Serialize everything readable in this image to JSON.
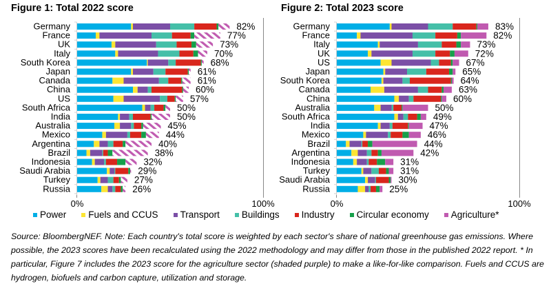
{
  "footnote": "Source: BloombergNEF. Note: Each country's total score is weighted by each sector's share of national greenhouse gas emissions. Where possible, the 2023 scores have been recalculated using the 2022 methodology and may differ from those in the published 2022 report. * In particular, Figure 7 includes the 2023 score for the agriculture sector (shaded purple) to make a like-for-like comparison. Fuels and CCUS are hydrogen, biofuels and carbon capture, utilization and storage.",
  "legend": [
    {
      "label": "Power",
      "color": "#00aee6"
    },
    {
      "label": "Fuels and CCUS",
      "color": "#fce533"
    },
    {
      "label": "Transport",
      "color": "#7b4fa6"
    },
    {
      "label": "Buildings",
      "color": "#45bfa8"
    },
    {
      "label": "Industry",
      "color": "#d9261c"
    },
    {
      "label": "Circular economy",
      "color": "#16a04a"
    },
    {
      "label": "Agriculture*",
      "color": "#c05ab0"
    }
  ],
  "chart_data": [
    {
      "type": "bar",
      "orientation": "horizontal",
      "stacked": true,
      "title": "Figure 1:  Total 2022 score",
      "xlim": [
        0,
        100
      ],
      "xticks": [
        "0%",
        "100%"
      ],
      "agriculture_style": "hatched",
      "series_names": [
        "Power",
        "Fuels and CCUS",
        "Transport",
        "Buildings",
        "Industry",
        "Circular economy",
        "Agriculture*"
      ],
      "categories": [
        "Germany",
        "France",
        "UK",
        "Italy",
        "South Korea",
        "Japan",
        "Canada",
        "China",
        "US",
        "South Africa",
        "India",
        "Australia",
        "Mexico",
        "Argentina",
        "Brazil",
        "Indonesia",
        "Saudi Arabia",
        "Turkey",
        "Russia"
      ],
      "totals_labels": [
        "82%",
        "77%",
        "73%",
        "70%",
        "68%",
        "61%",
        "61%",
        "60%",
        "57%",
        "50%",
        "50%",
        "45%",
        "44%",
        "40%",
        "38%",
        "32%",
        "29%",
        "27%",
        "26%"
      ],
      "values": [
        [
          29,
          1,
          20,
          13,
          12,
          1,
          6
        ],
        [
          10,
          2,
          28,
          11,
          10,
          2,
          14
        ],
        [
          18.5,
          2,
          22,
          11,
          8,
          2.5,
          9
        ],
        [
          20.5,
          1.5,
          21.5,
          11.5,
          7.5,
          2.5,
          5
        ],
        [
          37.5,
          0.5,
          11,
          4,
          13.5,
          0.5,
          1
        ],
        [
          29,
          1,
          11,
          6.5,
          12,
          0.5,
          1
        ],
        [
          19,
          6,
          19,
          5,
          7,
          0.5,
          4.5
        ],
        [
          30,
          2.5,
          5.5,
          2,
          16.5,
          0.5,
          3
        ],
        [
          19.5,
          5.5,
          19.5,
          4,
          4,
          0.5,
          4
        ],
        [
          35,
          1.5,
          3,
          2,
          5,
          1,
          2.5
        ],
        [
          22,
          1,
          5,
          2,
          9.5,
          0.5,
          10
        ],
        [
          20,
          3,
          6,
          1.5,
          4,
          1,
          9.5
        ],
        [
          13.5,
          2,
          11.5,
          1.5,
          6,
          2.5,
          7
        ],
        [
          9,
          3,
          4.5,
          3,
          5,
          1.5,
          14
        ],
        [
          5,
          2,
          6.5,
          0.5,
          2.5,
          2.5,
          19
        ],
        [
          8,
          1.5,
          5,
          1,
          6,
          4.5,
          6
        ],
        [
          16,
          1.5,
          2.5,
          0.5,
          7,
          1,
          0.5
        ],
        [
          11,
          1.5,
          4,
          3,
          3,
          1,
          3.5
        ],
        [
          13,
          3.5,
          2.5,
          1.5,
          3,
          1,
          1.5
        ]
      ]
    },
    {
      "type": "bar",
      "orientation": "horizontal",
      "stacked": true,
      "title": "Figure 2:  Total 2023 score",
      "xlim": [
        0,
        100
      ],
      "xticks": [
        "0%",
        "100%"
      ],
      "agriculture_style": "solid",
      "series_names": [
        "Power",
        "Fuels and CCUS",
        "Transport",
        "Buildings",
        "Industry",
        "Circular economy",
        "Agriculture*"
      ],
      "categories": [
        "Germany",
        "France",
        "Italy",
        "UK",
        "US",
        "Japan",
        "South Korea",
        "Canada",
        "China",
        "Australia",
        "South Africa",
        "India",
        "Mexico",
        "Brazil",
        "Argentina",
        "Indonesia",
        "Turkey",
        "Saudi Arabia",
        "Russia"
      ],
      "totals_labels": [
        "83%",
        "82%",
        "73%",
        "72%",
        "67%",
        "65%",
        "64%",
        "63%",
        "60%",
        "50%",
        "49%",
        "47%",
        "46%",
        "44%",
        "42%",
        "31%",
        "31%",
        "30%",
        "25%"
      ],
      "values": [
        [
          29,
          1,
          20,
          13.5,
          13,
          0.5,
          6
        ],
        [
          11,
          2,
          28.5,
          12.5,
          12,
          2,
          14
        ],
        [
          22.5,
          1,
          21,
          13,
          8,
          2.5,
          5
        ],
        [
          17,
          2,
          22.5,
          12.5,
          8,
          2.5,
          7.5
        ],
        [
          24,
          6,
          21.5,
          4.5,
          6.5,
          1,
          3.5
        ],
        [
          25.5,
          1,
          12,
          10.5,
          12.5,
          2,
          1.5
        ],
        [
          24.5,
          1,
          10.5,
          4,
          22.5,
          0.5,
          1
        ],
        [
          18.5,
          7.5,
          18.5,
          5.5,
          7.5,
          1,
          4.5
        ],
        [
          31.5,
          2.5,
          5.5,
          2.5,
          15,
          0.5,
          2.5
        ],
        [
          20.5,
          3.5,
          6,
          1,
          4.5,
          0.5,
          14
        ],
        [
          31.5,
          2,
          3,
          2.5,
          5,
          2,
          3
        ],
        [
          22.5,
          1.5,
          5,
          1.5,
          8.5,
          0.5,
          7.5
        ],
        [
          14.5,
          1.5,
          12,
          1.5,
          6.5,
          3.5,
          6.5
        ],
        [
          5,
          2,
          6.5,
          0.5,
          3,
          2.5,
          24.5
        ],
        [
          8,
          3.5,
          5,
          2.5,
          3.5,
          2,
          17.5
        ],
        [
          9,
          2,
          5.5,
          1,
          4.5,
          4.5,
          4.5
        ],
        [
          13.5,
          1,
          4.5,
          4,
          4,
          1.5,
          2.5
        ],
        [
          15.5,
          1.5,
          4,
          0.5,
          7,
          1,
          0.5
        ],
        [
          11.5,
          4,
          2,
          1,
          3,
          2,
          1.5
        ]
      ]
    }
  ]
}
